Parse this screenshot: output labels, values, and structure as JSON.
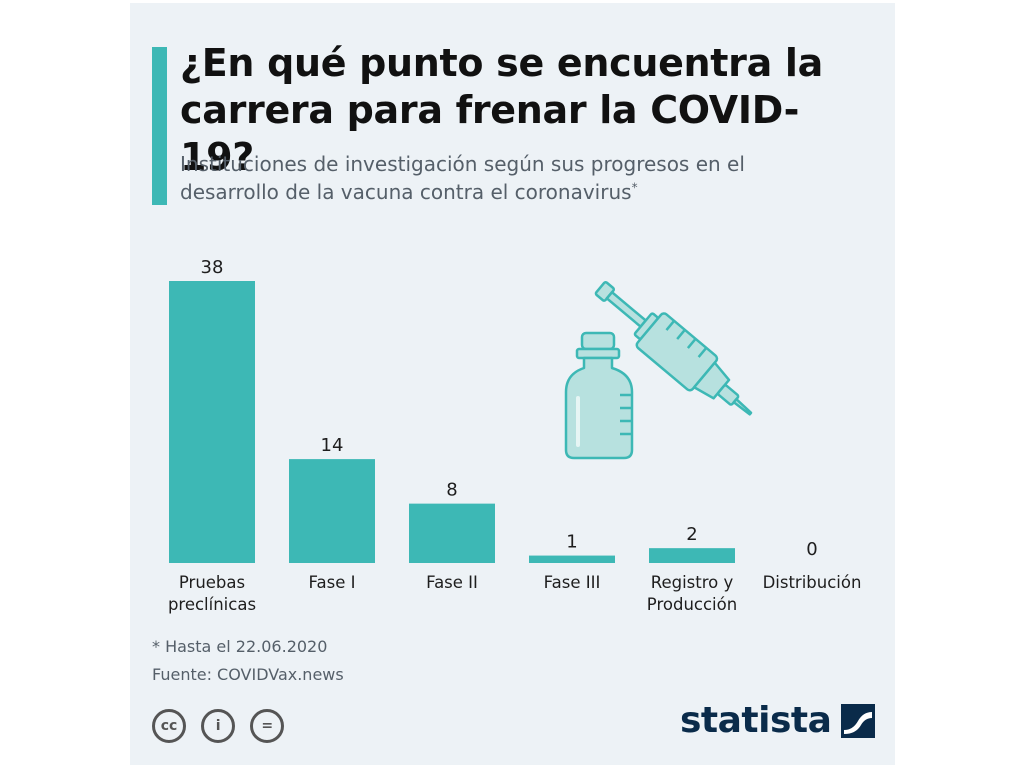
{
  "header": {
    "title": "¿En qué punto se encuentra la carrera para frenar la COVID-19?",
    "subtitle": "Instituciones de investigación según sus progresos en el desarrollo de la vacuna contra el coronavirus",
    "subtitle_marker": "*"
  },
  "chart_data": {
    "type": "bar",
    "title": "¿En qué punto se encuentra la carrera para frenar la COVID-19?",
    "categories": [
      [
        "Pruebas",
        "preclínicas"
      ],
      [
        "Fase I"
      ],
      [
        "Fase II"
      ],
      [
        "Fase III"
      ],
      [
        "Registro y",
        "Producción"
      ],
      [
        "Distribución"
      ]
    ],
    "values": [
      38,
      14,
      8,
      1,
      2,
      0
    ],
    "ylim": [
      0,
      38
    ],
    "xlabel": "",
    "ylabel": "",
    "grid": false,
    "color": "#3db8b5"
  },
  "illustration": {
    "name": "vaccine-vial-and-syringe"
  },
  "footer": {
    "note": "* Hasta el 22.06.2020",
    "source": "Fuente: COVIDVax.news"
  },
  "license": {
    "cc": "cc",
    "by": "i",
    "nd": "="
  },
  "brand": {
    "name": "statista"
  },
  "colors": {
    "accent": "#3db8b5",
    "background": "#edf2f6",
    "brand": "#0a2b4a",
    "text": "#1e1e1e",
    "muted": "#555f69"
  }
}
